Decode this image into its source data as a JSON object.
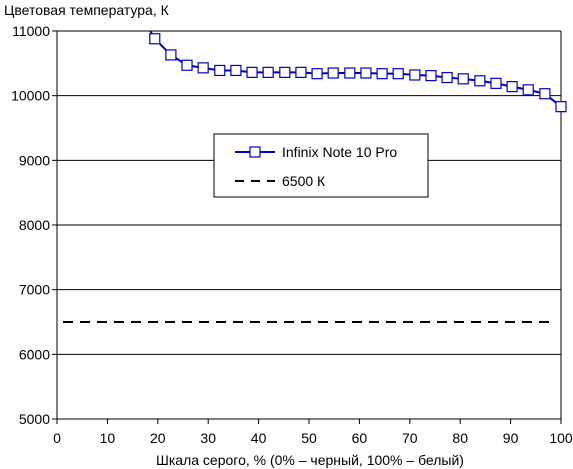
{
  "chart_data": {
    "type": "line",
    "ylabel": "Цветовая температура, К",
    "xlabel": "Шкала серого, % (0% – черный, 100% – белый)",
    "xlim": [
      0,
      100
    ],
    "ylim": [
      5000,
      11000
    ],
    "xticks": [
      "0",
      "10",
      "20",
      "30",
      "40",
      "50",
      "60",
      "70",
      "80",
      "90",
      "100"
    ],
    "yticks": [
      "5000",
      "6000",
      "7000",
      "8000",
      "9000",
      "10000",
      "11000"
    ],
    "grid": "horizontal",
    "legend_position": "center",
    "series": [
      {
        "name": "Infinix Note 10 Pro",
        "color": "#0000cc",
        "marker": "open-square",
        "x": [
          19.4,
          22.6,
          25.8,
          29.0,
          32.3,
          35.5,
          38.7,
          41.9,
          45.2,
          48.4,
          51.6,
          54.8,
          58.1,
          61.3,
          64.5,
          67.7,
          71.0,
          74.2,
          77.4,
          80.6,
          83.9,
          87.1,
          90.3,
          93.5,
          96.8,
          100
        ],
        "y": [
          10880,
          10630,
          10470,
          10430,
          10390,
          10390,
          10360,
          10360,
          10360,
          10360,
          10340,
          10350,
          10350,
          10350,
          10340,
          10340,
          10320,
          10310,
          10280,
          10260,
          10230,
          10190,
          10140,
          10090,
          10030,
          9830
        ],
        "offscale_start": [
          18.5,
          11000
        ]
      },
      {
        "name": "6500 К",
        "color": "#000000",
        "style": "dashed",
        "x": [
          0,
          100
        ],
        "y": [
          6500,
          6500
        ]
      }
    ]
  }
}
